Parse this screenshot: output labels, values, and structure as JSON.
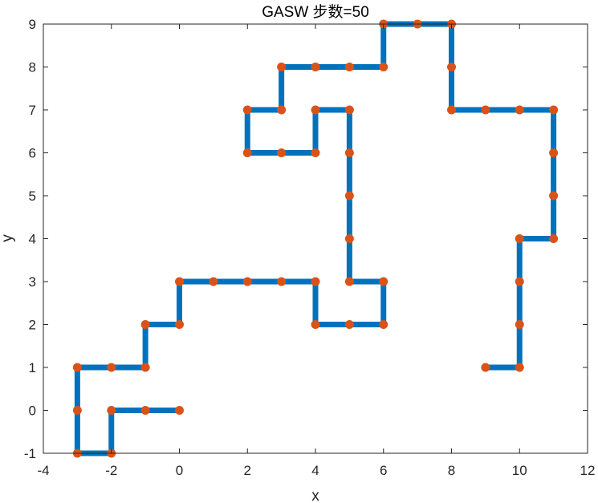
{
  "chart_data": {
    "type": "line",
    "title": "GASW 步数=50",
    "xlabel": "x",
    "ylabel": "y",
    "xlim": [
      -4,
      12
    ],
    "ylim": [
      -1,
      9
    ],
    "xticks": [
      -4,
      -2,
      0,
      2,
      4,
      6,
      8,
      10,
      12
    ],
    "yticks": [
      -1,
      0,
      1,
      2,
      3,
      4,
      5,
      6,
      7,
      8,
      9
    ],
    "grid": false,
    "line_color": "#0072BD",
    "marker_color": "#D95319",
    "series": [
      {
        "x": [
          0,
          -1,
          -2,
          -2,
          -3,
          -3,
          -3,
          -2,
          -1,
          -1,
          0,
          0,
          1,
          2,
          3,
          4,
          4,
          5,
          6,
          6,
          5,
          5,
          5,
          5,
          5,
          4,
          4,
          3,
          2,
          2,
          3,
          3,
          4,
          5,
          6,
          6,
          7,
          8,
          8,
          8,
          9,
          10,
          11,
          11,
          11,
          11,
          10,
          10,
          10,
          10,
          9
        ],
        "y": [
          0,
          0,
          0,
          -1,
          -1,
          0,
          1,
          1,
          1,
          2,
          2,
          3,
          3,
          3,
          3,
          3,
          2,
          2,
          2,
          3,
          3,
          4,
          5,
          6,
          7,
          7,
          6,
          6,
          6,
          7,
          7,
          8,
          8,
          8,
          8,
          9,
          9,
          9,
          8,
          7,
          7,
          7,
          7,
          6,
          5,
          4,
          4,
          3,
          2,
          1,
          1
        ]
      }
    ]
  }
}
